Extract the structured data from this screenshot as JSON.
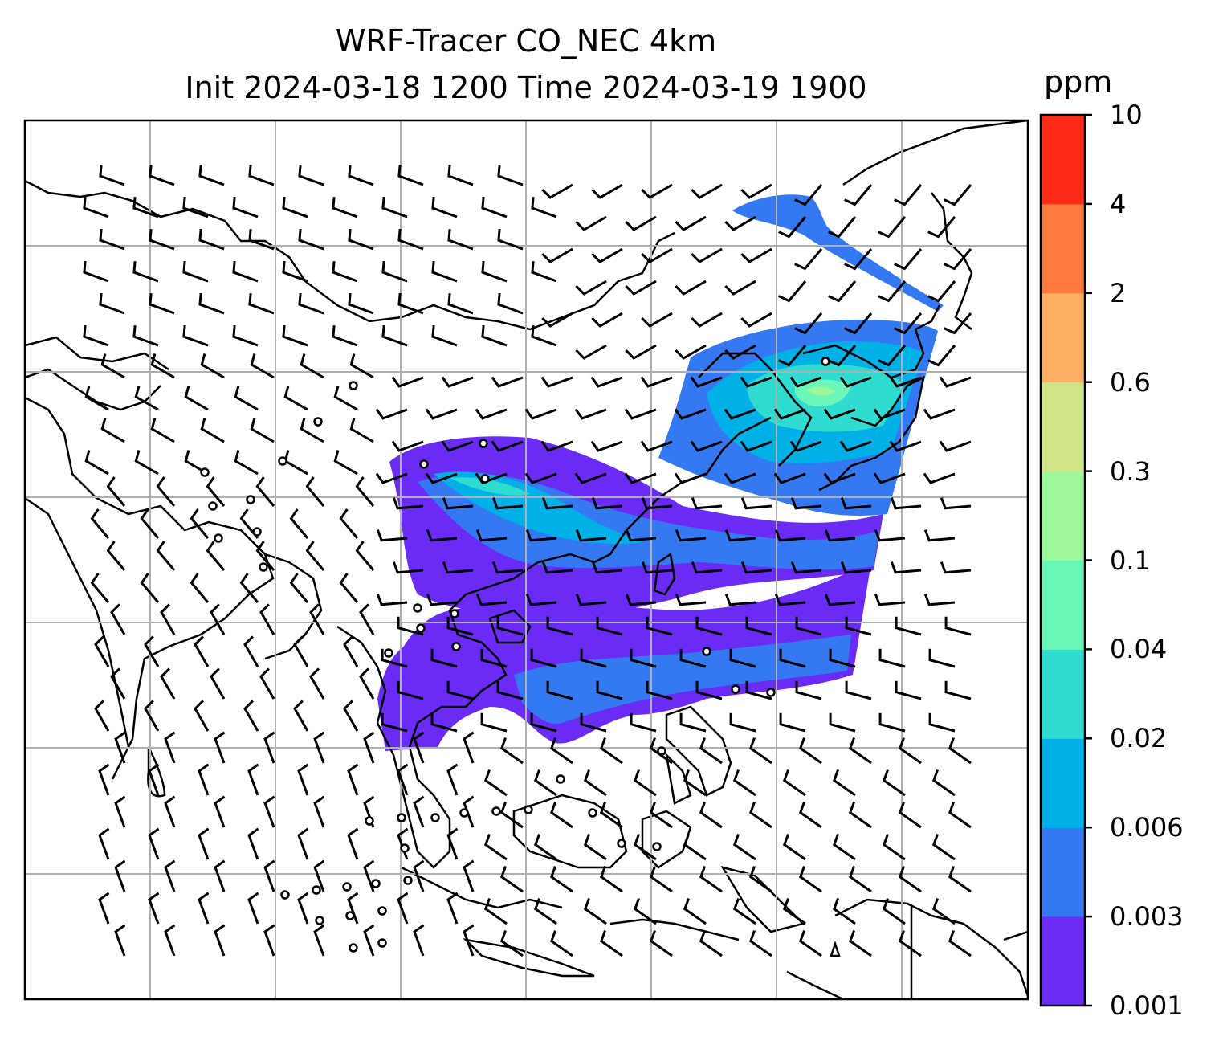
{
  "title": {
    "line1": "WRF-Tracer CO_NEC 4km",
    "line2": "Init 2024-03-18 1200 Time 2024-03-19 1900"
  },
  "colorbar": {
    "unit": "ppm",
    "levels": [
      "0.001",
      "0.003",
      "0.006",
      "0.02",
      "0.04",
      "0.1",
      "0.3",
      "0.6",
      "2",
      "4",
      "10"
    ],
    "colors": [
      "#6a2cf5",
      "#3478f2",
      "#00b1e8",
      "#30dbd0",
      "#6af7b8",
      "#9ef79b",
      "#d0e48a",
      "#fdb063",
      "#fe7a3e",
      "#fe2a16"
    ]
  },
  "map": {
    "gridlines": true,
    "content": "tracer concentration shading with wind barbs over East and Southeast Asia"
  }
}
